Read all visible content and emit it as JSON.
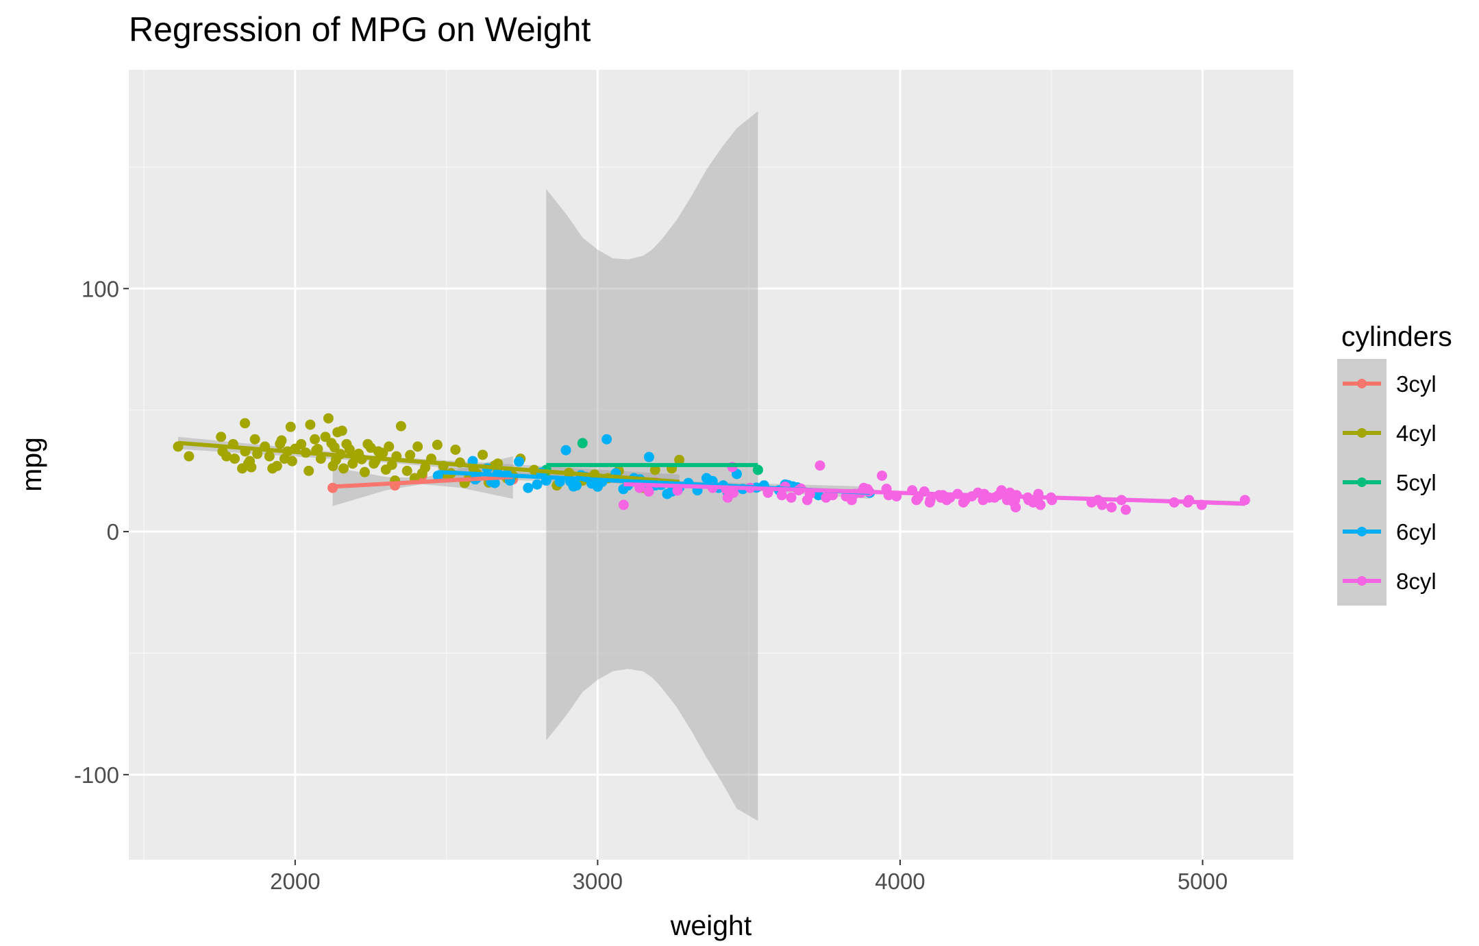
{
  "chart_data": {
    "type": "scatter",
    "title": "Regression of MPG on Weight",
    "xlabel": "weight",
    "ylabel": "mpg",
    "xlim": [
      1450,
      5300
    ],
    "ylim": [
      -135,
      190
    ],
    "x_ticks": [
      2000,
      3000,
      4000,
      5000
    ],
    "y_ticks": [
      -100,
      0,
      100
    ],
    "x_tick_labels": [
      "2000",
      "3000",
      "4000",
      "5000"
    ],
    "y_tick_labels": [
      "-100",
      "0",
      "100"
    ],
    "grid": true,
    "legend_title": "cylinders",
    "legend_position": "right",
    "series": [
      {
        "name": "3cyl",
        "color": "#F8766D",
        "x": [
          2124,
          2330,
          2420,
          2720
        ],
        "y": [
          18,
          19,
          23,
          21.5
        ],
        "fit": {
          "x": [
            2124,
            2720
          ],
          "y": [
            18.5,
            22.5
          ]
        },
        "ribbon": {
          "x": [
            2124,
            2300,
            2420,
            2550,
            2720
          ],
          "lower": [
            10.5,
            17,
            19.5,
            18,
            13.5
          ],
          "upper": [
            26.5,
            22.5,
            22,
            26,
            31
          ]
        }
      },
      {
        "name": "4cyl",
        "color": "#A3A500",
        "x": [
          1613,
          1649,
          1755,
          1760,
          1773,
          1795,
          1800,
          1825,
          1834,
          1835,
          1845,
          1850,
          1855,
          1867,
          1875,
          1900,
          1915,
          1925,
          1940,
          1950,
          1955,
          1965,
          1975,
          1985,
          1990,
          2000,
          2020,
          2035,
          2045,
          2050,
          2065,
          2070,
          2075,
          2085,
          2100,
          2110,
          2120,
          2125,
          2130,
          2135,
          2140,
          2150,
          2155,
          2160,
          2170,
          2180,
          2190,
          2200,
          2210,
          2220,
          2230,
          2240,
          2250,
          2260,
          2265,
          2275,
          2290,
          2300,
          2310,
          2320,
          2330,
          2335,
          2350,
          2370,
          2380,
          2395,
          2405,
          2420,
          2430,
          2450,
          2470,
          2490,
          2500,
          2515,
          2530,
          2545,
          2560,
          2575,
          2590,
          2600,
          2620,
          2640,
          2660,
          2670,
          2700,
          2720,
          2745,
          2790,
          2830,
          2865,
          2905,
          2950,
          2990,
          3035,
          3070,
          3150,
          3190,
          3245,
          3270
        ],
        "y": [
          35,
          31,
          39,
          33,
          31,
          36,
          30,
          26,
          44.6,
          33,
          28,
          29,
          26.5,
          38,
          32,
          35,
          31,
          26,
          27,
          36.1,
          37.5,
          30,
          33,
          43.1,
          29,
          34.1,
          36,
          32.5,
          25,
          44,
          38,
          33.5,
          34,
          30,
          39,
          46.6,
          36.4,
          27,
          34.7,
          29.5,
          40.9,
          31.9,
          41.5,
          26,
          36,
          33.8,
          28,
          30.5,
          32,
          29.8,
          24.5,
          36,
          34.5,
          28,
          29,
          33,
          32.4,
          25.5,
          35,
          27.5,
          21,
          31,
          43.4,
          25,
          31.5,
          22,
          35,
          24,
          26.4,
          30,
          35.7,
          27,
          23.5,
          24,
          33.7,
          28.4,
          20,
          22.3,
          26,
          23.9,
          31.6,
          20.2,
          27.2,
          28,
          22,
          23,
          30,
          25.4,
          22,
          19,
          24.2,
          21,
          23.5,
          22,
          25,
          18,
          25.4,
          26,
          29.5
        ],
        "fit": {
          "x": [
            1613,
            3270
          ],
          "y": [
            36.5,
            20.5
          ]
        },
        "ribbon": {
          "x": [
            1613,
            2300,
            3270
          ],
          "lower": [
            34,
            28.5,
            17.5
          ],
          "upper": [
            39,
            30.8,
            23.5
          ]
        }
      },
      {
        "name": "5cyl",
        "color": "#00BF7D",
        "x": [
          2830,
          2950,
          3530
        ],
        "y": [
          25.4,
          36.4,
          25.4
        ],
        "fit": {
          "x": [
            2830,
            3530
          ],
          "y": [
            27.4,
            27.4
          ]
        },
        "ribbon": {
          "x": [
            2830,
            2900,
            2950,
            3000,
            3050,
            3100,
            3150,
            3180,
            3210,
            3260,
            3310,
            3360,
            3410,
            3460,
            3530
          ],
          "lower": [
            -86,
            -75,
            -66,
            -61,
            -57.5,
            -56.5,
            -57.5,
            -60,
            -64,
            -72,
            -82,
            -93,
            -103,
            -114,
            -119
          ],
          "upper": [
            141,
            130,
            121,
            116,
            112.5,
            112,
            113.5,
            116,
            120,
            128,
            138,
            149,
            158,
            166,
            173
          ]
        }
      },
      {
        "name": "6cyl",
        "color": "#00B0F6",
        "x": [
          2472,
          2587,
          2595,
          2600,
          2635,
          2648,
          2660,
          2670,
          2700,
          2710,
          2740,
          2770,
          2800,
          2814,
          2830,
          2875,
          2895,
          2910,
          2920,
          2930,
          2945,
          2960,
          2980,
          3000,
          3015,
          3030,
          3060,
          3085,
          3100,
          3120,
          3140,
          3150,
          3170,
          3190,
          3210,
          3230,
          3245,
          3265,
          3270,
          3300,
          3330,
          3360,
          3380,
          3400,
          3415,
          3430,
          3445,
          3460,
          3480,
          3525,
          3550,
          3600,
          3620,
          3630,
          3645,
          3660,
          3730,
          3900
        ],
        "y": [
          23,
          29,
          21.5,
          22,
          26,
          20.5,
          20,
          24,
          23.5,
          21,
          28.8,
          18,
          19.4,
          24.3,
          21,
          20.5,
          33.5,
          20.6,
          18.6,
          19,
          23.2,
          22.5,
          19.8,
          18.5,
          20.5,
          38,
          24,
          17.5,
          19,
          22,
          21.5,
          20,
          30.7,
          19,
          19.2,
          15.5,
          16.5,
          17.7,
          18.1,
          20,
          17,
          22,
          20.8,
          18,
          19,
          16,
          16.5,
          23.7,
          17.5,
          18.1,
          19,
          17,
          19.4,
          19.1,
          18.6,
          18.2,
          15,
          16
        ],
        "fit": {
          "x": [
            2472,
            3900
          ],
          "y": [
            24.5,
            16
          ]
        },
        "ribbon": {
          "x": [
            2472,
            3200,
            3900
          ],
          "lower": [
            22,
            19.5,
            13.5
          ],
          "upper": [
            26.5,
            21,
            18.5
          ]
        }
      },
      {
        "name": "8cyl",
        "color": "#F564E3",
        "x": [
          3086,
          3139,
          3169,
          3193,
          3264,
          3380,
          3425,
          3430,
          3445,
          3449,
          3504,
          3563,
          3609,
          3620,
          3640,
          3664,
          3672,
          3693,
          3702,
          3735,
          3755,
          3777,
          3821,
          3840,
          3850,
          3870,
          3880,
          3892,
          3897,
          3940,
          3955,
          3962,
          3988,
          4040,
          4054,
          4060,
          4080,
          4098,
          4100,
          4129,
          4135,
          4141,
          4154,
          4165,
          4190,
          4209,
          4215,
          4237,
          4257,
          4274,
          4278,
          4294,
          4312,
          4325,
          4335,
          4341,
          4354,
          4360,
          4363,
          4376,
          4380,
          4382,
          4385,
          4422,
          4425,
          4440,
          4456,
          4457,
          4464,
          4499,
          4502,
          4633,
          4654,
          4668,
          4699,
          4732,
          4746,
          4906,
          4951,
          4955,
          4997,
          5140
        ],
        "y": [
          11,
          18,
          16.5,
          20.2,
          16.9,
          18,
          17.5,
          14,
          26.6,
          16,
          18,
          16,
          15,
          18.5,
          14,
          17,
          17.7,
          13,
          15.5,
          27.2,
          14,
          15,
          14.5,
          13,
          15.5,
          16,
          18,
          17.5,
          16.5,
          23,
          17.6,
          15,
          14.5,
          17,
          13,
          14,
          16.5,
          12,
          13,
          15,
          14,
          15,
          13,
          14,
          15.5,
          12,
          13,
          14.5,
          16,
          13,
          15.5,
          14,
          14,
          15,
          17,
          16,
          13,
          14.5,
          16,
          12,
          13,
          10,
          15,
          14,
          13,
          12,
          14,
          15.5,
          11,
          14,
          13,
          12,
          13,
          11,
          10,
          13,
          9,
          12,
          12,
          13,
          11,
          13
        ],
        "fit": {
          "x": [
            3086,
            5140
          ],
          "y": [
            19.5,
            11.5
          ]
        },
        "ribbon": {
          "x": [
            3086,
            4200,
            5140
          ],
          "lower": [
            18.5,
            15,
            10.5
          ],
          "upper": [
            20.5,
            16,
            12.5
          ]
        }
      }
    ]
  }
}
